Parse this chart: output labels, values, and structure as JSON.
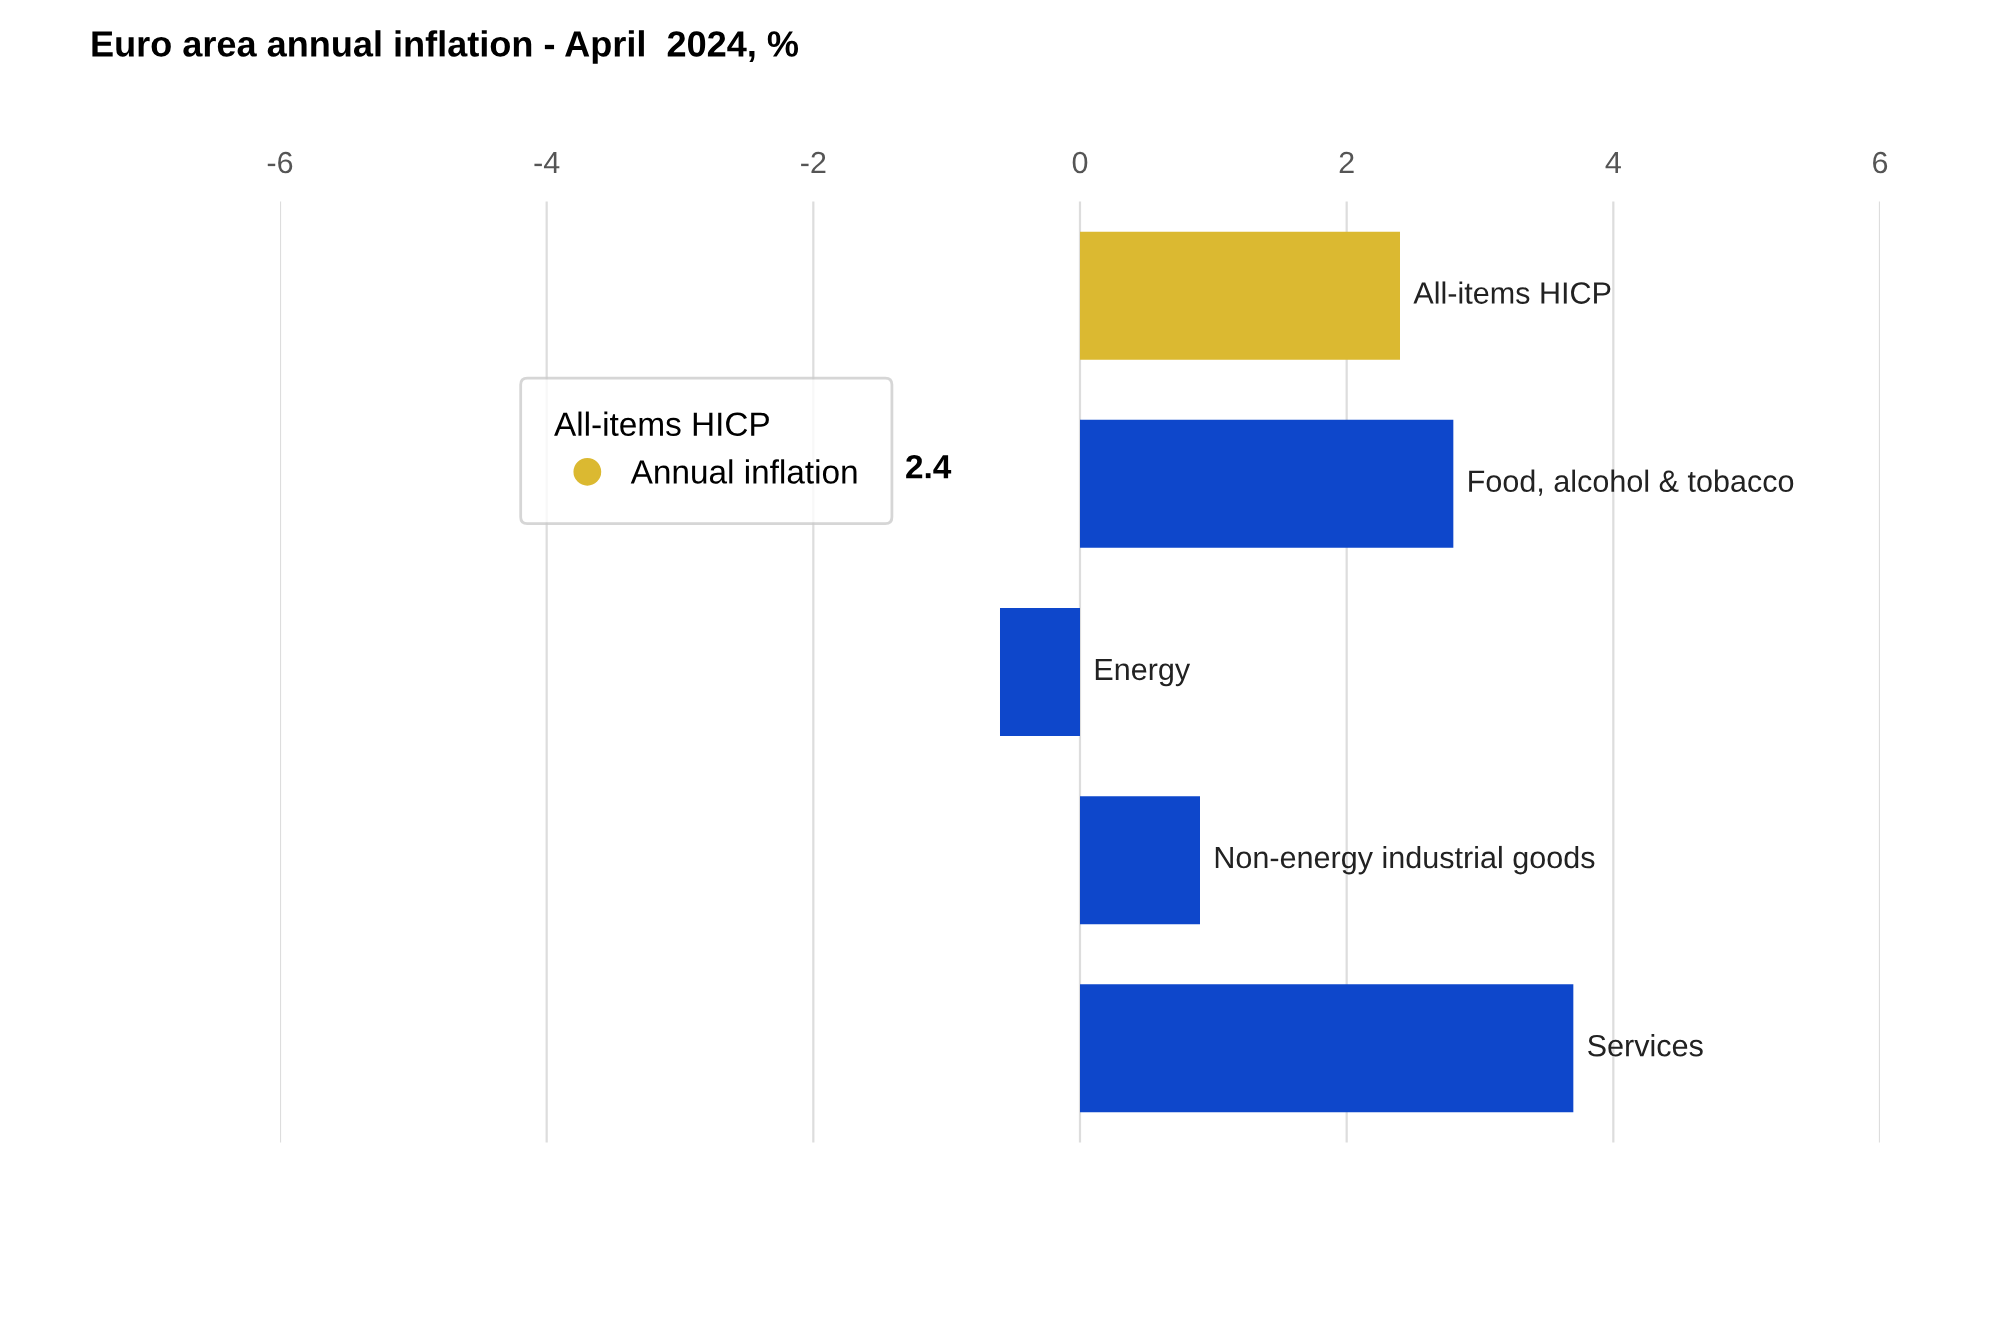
{
  "chart_data": {
    "type": "bar",
    "orientation": "horizontal",
    "title": "Euro area annual inflation - April  2024, %",
    "categories": [
      "All-items HICP",
      "Food, alcohol & tobacco",
      "Energy",
      "Non-energy industrial goods",
      "Services"
    ],
    "series": [
      {
        "name": "Annual inflation",
        "colors": [
          "#dbb931",
          "#0e47cb",
          "#0e47cb",
          "#0e47cb",
          "#0e47cb"
        ],
        "values": [
          2.4,
          2.8,
          -0.6,
          0.9,
          3.7
        ]
      }
    ],
    "xlim": [
      -6,
      6
    ],
    "xticks": [
      -6,
      -4,
      -2,
      0,
      2,
      4,
      6
    ],
    "grid": "x",
    "legend": "left",
    "legend_title": "All-items HICP",
    "annotations": [
      "2.4"
    ]
  }
}
